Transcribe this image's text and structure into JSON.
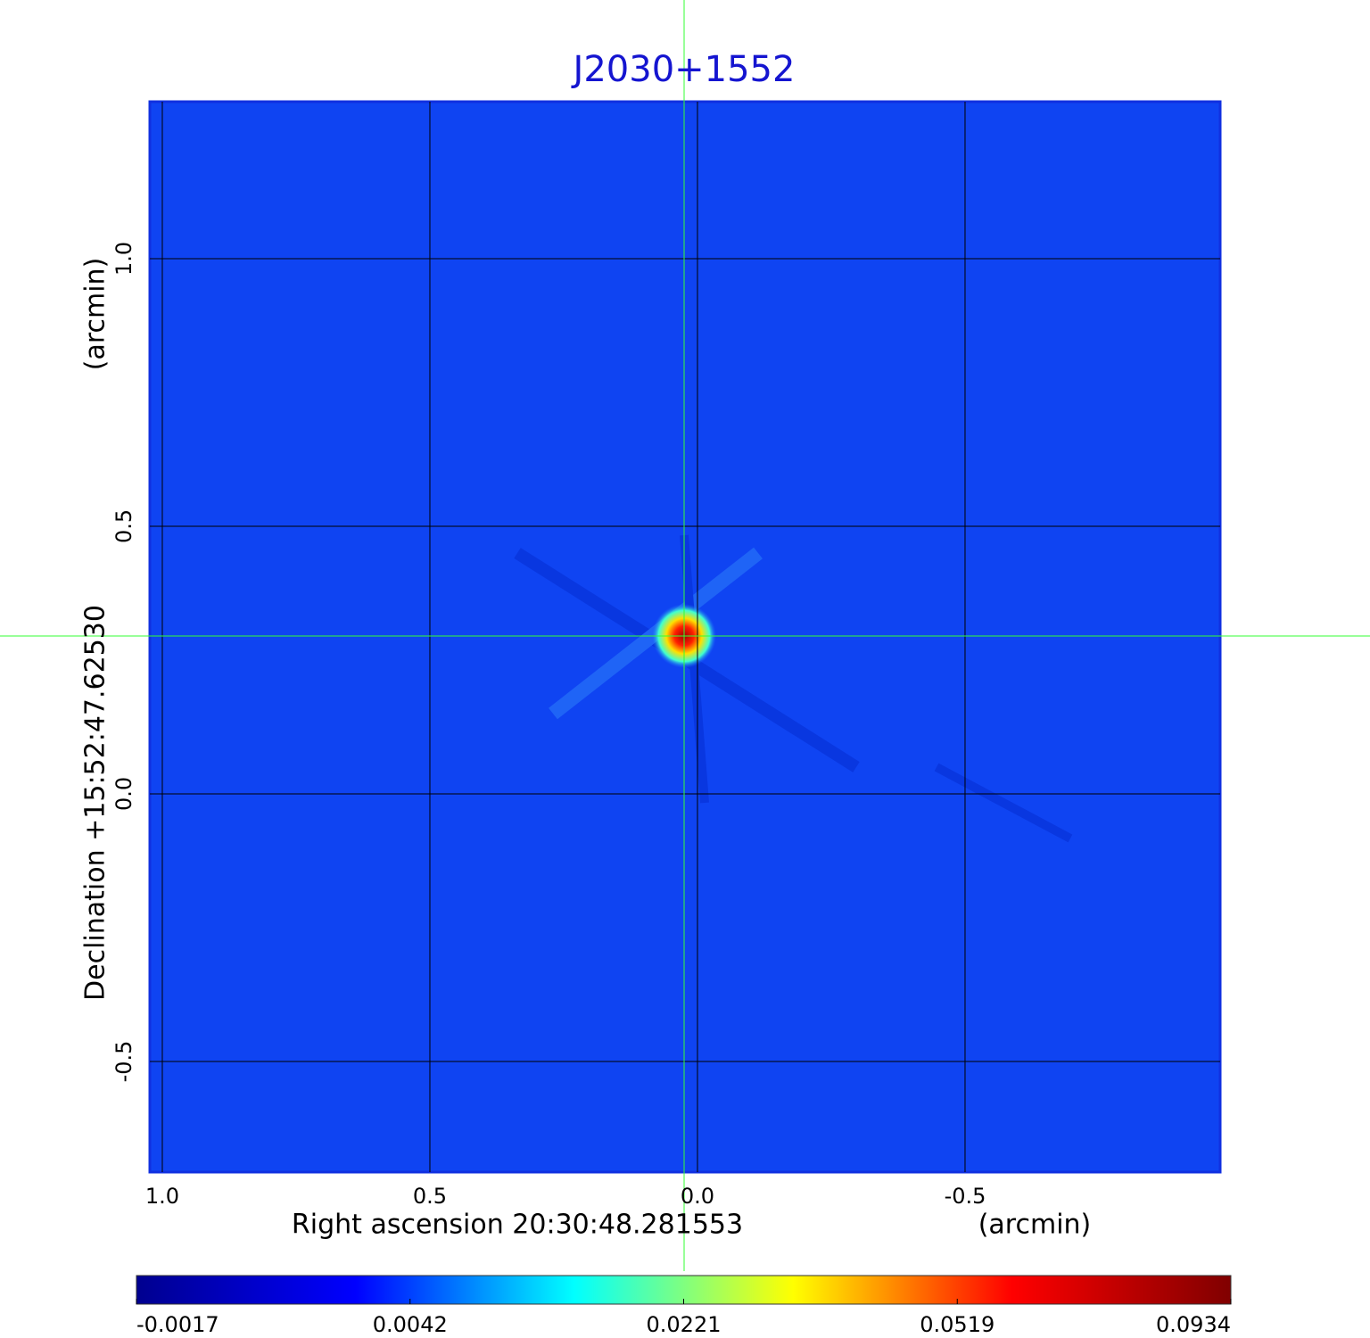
{
  "chart_data": {
    "type": "image",
    "title": "J2030+1552",
    "x_label": "Right ascension  20:30:48.281553",
    "x_unit": "(arcmin)",
    "y_label": "Declination  +15:52:47.62530",
    "y_unit": "(arcmin)",
    "xlim": [
      1.0233,
      -0.9767
    ],
    "ylim": [
      -0.7067,
      1.2933
    ],
    "xticks": [
      {
        "value": 1,
        "label": "1.0"
      },
      {
        "value": 0.5,
        "label": "0.5"
      },
      {
        "value": 0,
        "label": "0.0"
      },
      {
        "value": -0.5,
        "label": "-0.5"
      }
    ],
    "yticks": [
      {
        "value": -0.5,
        "label": "-0.5"
      },
      {
        "value": 0,
        "label": "0.0"
      },
      {
        "value": 0.5,
        "label": "0.5"
      },
      {
        "value": 1,
        "label": "1.0"
      }
    ],
    "grid": true,
    "background_color": "#0f44f2",
    "colormap": [
      "#00008f",
      "#0000ff",
      "#00ffff",
      "#ffff00",
      "#ff0000",
      "#800000"
    ],
    "colorbar_ticks": [
      -0.0017,
      0.0042,
      0.0221,
      0.0519,
      0.0934
    ]
  }
}
